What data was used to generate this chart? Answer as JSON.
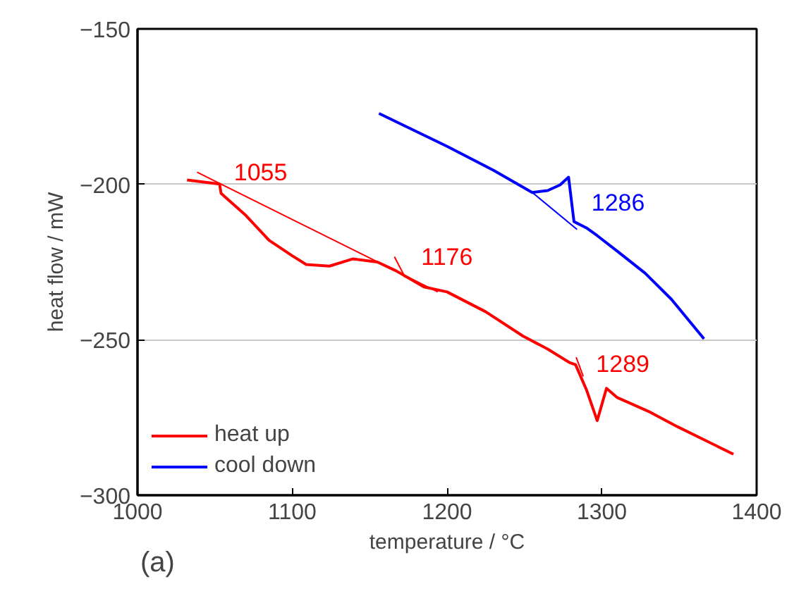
{
  "chart_data": {
    "type": "line",
    "xlabel": "temperature / °C",
    "ylabel": "heat flow / mW",
    "xlim": [
      1000,
      1400
    ],
    "xticks": [
      1000,
      1100,
      1200,
      1300,
      1400
    ],
    "ylim": [
      -300,
      -150
    ],
    "yticks": [
      -300,
      -250,
      -200,
      -150
    ],
    "grid": "y",
    "legend": "bottom left",
    "series": [
      {
        "name": "heat up",
        "color": "#ff0000",
        "x": [
          1032,
          1053,
          1054,
          1070,
          1085,
          1100,
          1109,
          1124,
          1139,
          1155,
          1167,
          1185,
          1200,
          1225,
          1249,
          1265,
          1279,
          1283,
          1290,
          1297,
          1303,
          1310,
          1330,
          1349,
          1385
        ],
        "values": [
          -198.6,
          -199.9,
          -202.9,
          -210,
          -218,
          -223,
          -225.8,
          -226.3,
          -224,
          -225,
          -227.8,
          -233,
          -234.6,
          -241,
          -248.8,
          -253,
          -257.3,
          -258,
          -266,
          -276,
          -265.6,
          -268.6,
          -273,
          -278,
          -286.8
        ]
      },
      {
        "name": "cool down",
        "color": "#0000ff",
        "x": [
          1156,
          1200,
          1230,
          1255,
          1265,
          1273,
          1278.5,
          1282,
          1290,
          1297,
          1310,
          1328,
          1345,
          1366
        ],
        "values": [
          -177.2,
          -187.8,
          -195.5,
          -202.6,
          -202,
          -200.2,
          -197.7,
          -212,
          -214,
          -216.5,
          -221.5,
          -228.6,
          -237,
          -249.7
        ]
      },
      {
        "color": "#ff0000",
        "x": [
          1038.5,
          1194
        ],
        "values": [
          -196.1,
          -234.6
        ]
      },
      {
        "color": "#ff0000",
        "x": [
          1166,
          1173
        ],
        "values": [
          -223.3,
          -230
        ]
      },
      {
        "color": "#ff0000",
        "x": [
          1283.4,
          1288
        ],
        "values": [
          -255.6,
          -261.8
        ]
      },
      {
        "color": "#0000ff",
        "x": [
          1255,
          1284
        ],
        "values": [
          -202.6,
          -214.5
        ]
      }
    ],
    "annotations": [
      {
        "text": "1055",
        "x": 1055,
        "y": -203.3
      },
      {
        "text": "1176",
        "x": 1176,
        "y": -230.4
      },
      {
        "text": "1289",
        "x": 1289,
        "y": -264.9
      },
      {
        "text": "1286",
        "x": 1286,
        "y": -213
      },
      "(a)"
    ]
  }
}
